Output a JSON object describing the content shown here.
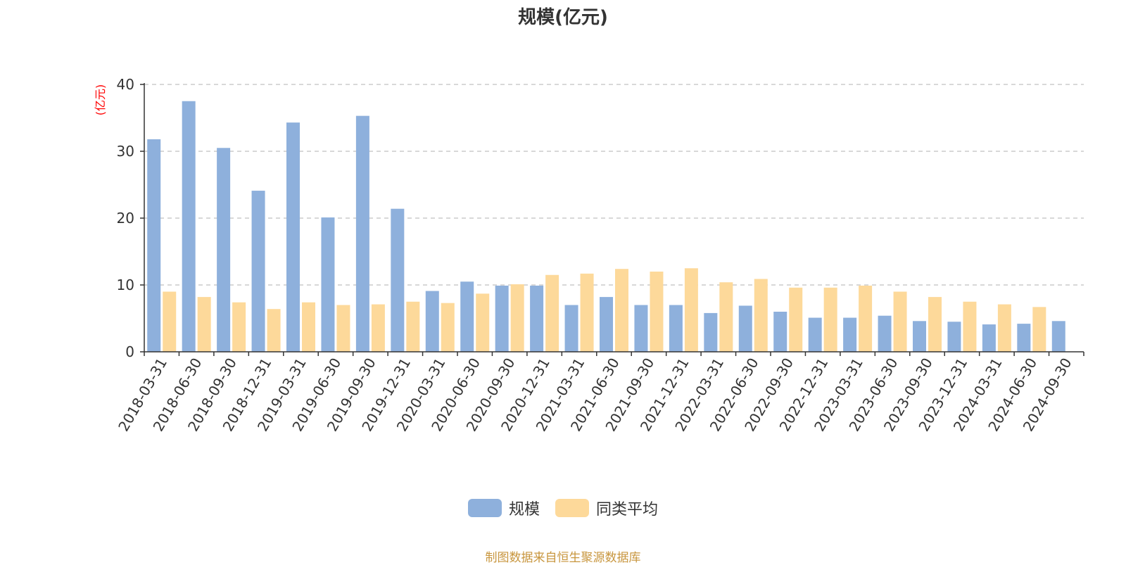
{
  "chart_data": {
    "type": "bar",
    "title": "规模(亿元)",
    "ylabel": "(亿元)",
    "xlabel": "",
    "ylim": [
      0,
      40
    ],
    "yticks": [
      0,
      10,
      20,
      30,
      40
    ],
    "grid": true,
    "legend_position": "bottom-center",
    "categories": [
      "2018-03-31",
      "2018-06-30",
      "2018-09-30",
      "2018-12-31",
      "2019-03-31",
      "2019-06-30",
      "2019-09-30",
      "2019-12-31",
      "2020-03-31",
      "2020-06-30",
      "2020-09-30",
      "2020-12-31",
      "2021-03-31",
      "2021-06-30",
      "2021-09-30",
      "2021-12-31",
      "2022-03-31",
      "2022-06-30",
      "2022-09-30",
      "2022-12-31",
      "2023-03-31",
      "2023-06-30",
      "2023-09-30",
      "2023-12-31",
      "2024-03-31",
      "2024-06-30",
      "2024-09-30"
    ],
    "series": [
      {
        "name": "规模",
        "color": "#8eb0dc",
        "values": [
          31.8,
          37.5,
          30.5,
          24.1,
          34.3,
          20.1,
          35.3,
          21.4,
          9.1,
          10.5,
          9.9,
          9.9,
          7.0,
          8.2,
          7.0,
          7.0,
          5.8,
          6.9,
          6.0,
          5.1,
          5.1,
          5.4,
          4.6,
          4.5,
          4.1,
          4.2,
          4.6
        ]
      },
      {
        "name": "同类平均",
        "color": "#fdd99a",
        "values": [
          9.0,
          8.2,
          7.4,
          6.4,
          7.4,
          7.0,
          7.1,
          7.5,
          7.3,
          8.7,
          10.1,
          11.5,
          11.7,
          12.4,
          12.0,
          12.5,
          10.4,
          10.9,
          9.6,
          9.6,
          9.9,
          9.0,
          8.2,
          7.5,
          7.1,
          6.7,
          null
        ]
      }
    ]
  },
  "source": "制图数据来自恒生聚源数据库"
}
